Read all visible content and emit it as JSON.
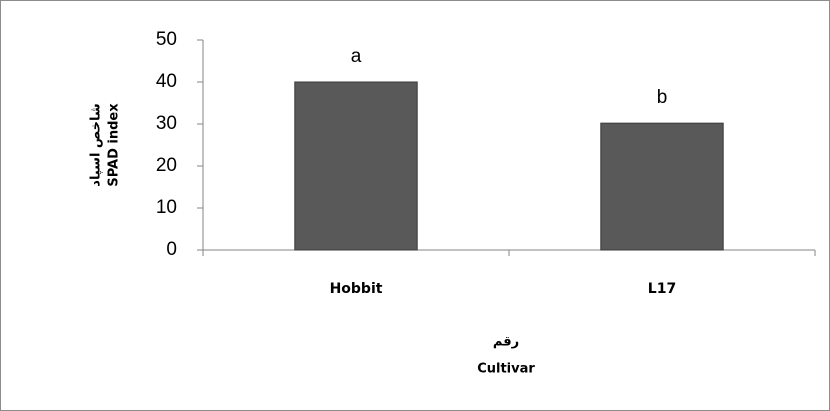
{
  "chart_data": {
    "type": "bar",
    "categories": [
      "Hobbit",
      "L17"
    ],
    "values": [
      40,
      30.2
    ],
    "color": "#595959",
    "annotations": [
      "a",
      "b"
    ],
    "ylabel": [
      "شاخص اسپاد",
      "SPAD index"
    ],
    "xlabel": [
      "رقم",
      "Cultivar"
    ],
    "ylim": [
      0,
      50
    ],
    "yticks": [
      0,
      10,
      20,
      30,
      40,
      50
    ],
    "grid": false
  }
}
